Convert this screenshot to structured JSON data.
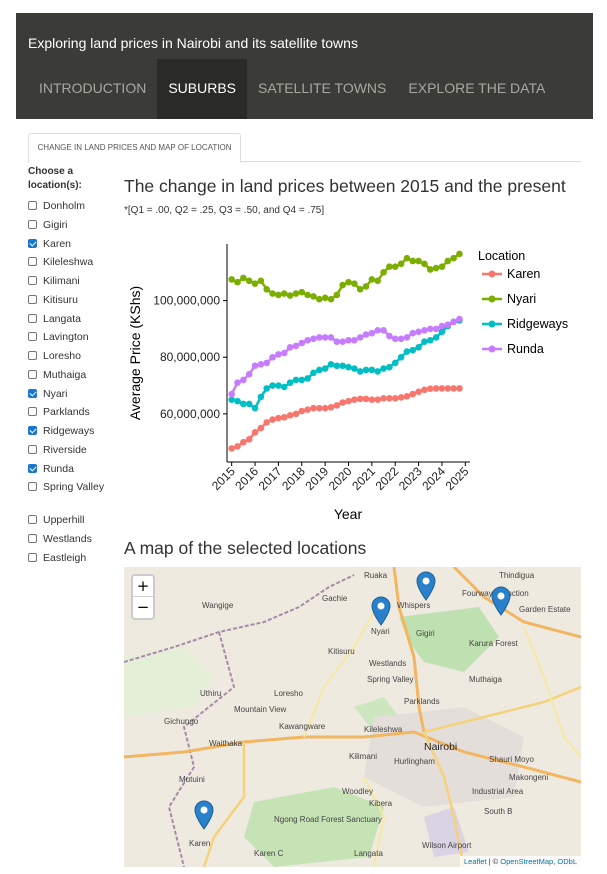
{
  "app": {
    "title": "Exploring land prices in Nairobi and its satellite towns"
  },
  "nav": {
    "tabs": [
      "INTRODUCTION",
      "SUBURBS",
      "SATELLITE TOWNS",
      "EXPLORE THE DATA"
    ],
    "active": "SUBURBS"
  },
  "subtab": {
    "label": "CHANGE IN LAND PRICES AND MAP OF LOCATION"
  },
  "sidebar": {
    "title": "Choose a location(s):",
    "options": [
      {
        "label": "Donholm",
        "checked": false
      },
      {
        "label": "Gigiri",
        "checked": false
      },
      {
        "label": "Karen",
        "checked": true
      },
      {
        "label": "Kileleshwa",
        "checked": false
      },
      {
        "label": "Kilimani",
        "checked": false
      },
      {
        "label": "Kitisuru",
        "checked": false
      },
      {
        "label": "Langata",
        "checked": false
      },
      {
        "label": "Lavington",
        "checked": false
      },
      {
        "label": "Loresho",
        "checked": false
      },
      {
        "label": "Muthaiga",
        "checked": false
      },
      {
        "label": "Nyari",
        "checked": true
      },
      {
        "label": "Parklands",
        "checked": false
      },
      {
        "label": "Ridgeways",
        "checked": true
      },
      {
        "label": "Riverside",
        "checked": false
      },
      {
        "label": "Runda",
        "checked": true
      },
      {
        "label": "Spring Valley",
        "checked": false
      },
      {
        "label": "Upperhill",
        "checked": false
      },
      {
        "label": "Westlands",
        "checked": false
      },
      {
        "label": "Eastleigh",
        "checked": false
      }
    ]
  },
  "chart_section": {
    "title": "The change in land prices between 2015 and the present",
    "subtitle": "*[Q1 = .00, Q2 = .25, Q3 = .50, and Q4 = .75]"
  },
  "chart_data": {
    "type": "line",
    "xlabel": "Year",
    "ylabel": "Average Price (KShs)",
    "xlim": [
      2014.8,
      2025.2
    ],
    "ylim": [
      43000000,
      120000000
    ],
    "xticks": [
      "2015",
      "2016",
      "2017",
      "2018",
      "2019",
      "2020",
      "2021",
      "2022",
      "2023",
      "2024",
      "2025"
    ],
    "yticks": [
      "60,000,000",
      "80,000,000",
      "100,000,000"
    ],
    "legend_title": "Location",
    "legend_position": "right",
    "x": [
      2015.0,
      2015.25,
      2015.5,
      2015.75,
      2016.0,
      2016.25,
      2016.5,
      2016.75,
      2017.0,
      2017.25,
      2017.5,
      2017.75,
      2018.0,
      2018.25,
      2018.5,
      2018.75,
      2019.0,
      2019.25,
      2019.5,
      2019.75,
      2020.0,
      2020.25,
      2020.5,
      2020.75,
      2021.0,
      2021.25,
      2021.5,
      2021.75,
      2022.0,
      2022.25,
      2022.5,
      2022.75,
      2023.0,
      2023.25,
      2023.5,
      2023.75,
      2024.0,
      2024.25,
      2024.5,
      2024.75
    ],
    "series": [
      {
        "name": "Karen",
        "color": "#f8766d",
        "values": [
          47800000,
          48500000,
          50000000,
          51000000,
          53500000,
          55000000,
          57000000,
          58000000,
          58500000,
          58800000,
          59500000,
          60000000,
          61000000,
          61500000,
          62000000,
          62000000,
          62000000,
          62300000,
          63000000,
          64000000,
          64500000,
          65000000,
          65300000,
          65300000,
          65000000,
          65000000,
          65500000,
          65500000,
          65500000,
          65800000,
          66200000,
          67000000,
          67800000,
          68500000,
          68900000,
          69000000,
          69000000,
          69000000,
          69000000,
          69000000
        ]
      },
      {
        "name": "Nyari",
        "color": "#7cae00",
        "values": [
          107500000,
          106500000,
          108000000,
          107000000,
          106000000,
          107000000,
          104000000,
          102500000,
          102000000,
          102500000,
          101800000,
          102500000,
          103000000,
          102000000,
          101500000,
          100500000,
          101000000,
          100500000,
          102000000,
          105500000,
          106500000,
          106000000,
          104000000,
          105000000,
          107500000,
          107000000,
          110000000,
          112000000,
          112000000,
          113000000,
          115000000,
          114000000,
          114000000,
          113000000,
          111000000,
          111500000,
          112000000,
          114000000,
          115000000,
          116500000
        ]
      },
      {
        "name": "Ridgeways",
        "color": "#00bfc4",
        "values": [
          65000000,
          64500000,
          63500000,
          63500000,
          62000000,
          66000000,
          69000000,
          70000000,
          70000000,
          69500000,
          71000000,
          72000000,
          72000000,
          72500000,
          74500000,
          75500000,
          76000000,
          77500000,
          77000000,
          77000000,
          76500000,
          76000000,
          75000000,
          75500000,
          75500000,
          75000000,
          76000000,
          76500000,
          78000000,
          80000000,
          82000000,
          82500000,
          83500000,
          85500000,
          86000000,
          87000000,
          89000000,
          91000000,
          92500000,
          93000000
        ]
      },
      {
        "name": "Runda",
        "color": "#c77cff",
        "values": [
          67000000,
          71000000,
          72000000,
          74000000,
          77000000,
          77500000,
          78000000,
          80000000,
          81000000,
          81500000,
          83500000,
          84000000,
          85000000,
          86000000,
          86500000,
          87000000,
          87000000,
          87000000,
          85500000,
          85500000,
          86000000,
          86000000,
          87000000,
          88000000,
          88500000,
          89500000,
          89500000,
          87500000,
          86500000,
          86500000,
          87000000,
          88500000,
          89000000,
          89500000,
          90000000,
          90000000,
          91000000,
          91500000,
          92500000,
          93500000
        ]
      }
    ]
  },
  "map_section": {
    "title": "A map of the selected locations"
  },
  "map": {
    "zoom_in": "+",
    "zoom_out": "−",
    "labels": [
      "Ruaka",
      "Thindigua",
      "Gachie",
      "Whispers",
      "Fourways Junction",
      "Wangige",
      "Garden Estate",
      "Nyari",
      "Gigiri",
      "Kitisuru",
      "Karura Forest",
      "Westlands",
      "Spring Valley",
      "Muthaiga",
      "Uthiru",
      "Loresho",
      "Mountain View",
      "Parklands",
      "Gichungo",
      "Kawangware",
      "Kileleshwa",
      "Waithaka",
      "Nairobi",
      "Kilimani",
      "Hurlingham",
      "Shauri Moyo",
      "Makongeni",
      "Mutuini",
      "Woodley",
      "Kibera",
      "Industrial Area",
      "Ngong Road Forest Sanctuary",
      "South B",
      "Karen",
      "Karen C",
      "Langata",
      "Wilson Airport"
    ],
    "marker_color": "#2a81cb",
    "marker_icon": "map-pin-icon",
    "attribution": {
      "leaflet": "Leaflet",
      "separator": " | © ",
      "osm": "OpenStreetMap",
      "odbl": "ODbL"
    }
  }
}
